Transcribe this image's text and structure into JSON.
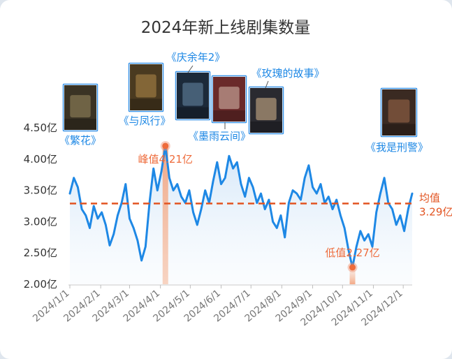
{
  "chart_data": {
    "type": "line",
    "title": "2024年新上线剧集数量",
    "xlabel": "",
    "ylabel": "",
    "ylim": [
      2.0,
      4.5
    ],
    "y_ticks": [
      "2.00亿",
      "2.50亿",
      "3.00亿",
      "3.50亿",
      "4.00亿",
      "4.50亿"
    ],
    "x_ticks": [
      "2024/1/1",
      "2024/2/1",
      "2024/3/1",
      "2024/4/1",
      "2024/5/1",
      "2024/6/1",
      "2024/7/1",
      "2024/8/1",
      "2024/9/1",
      "2024/10/1",
      "2024/11/1",
      "2024/12/1"
    ],
    "series": [
      {
        "name": "",
        "color": "#1e88e5",
        "x": [
          "2024-01-01",
          "2024-01-05",
          "2024-01-09",
          "2024-01-13",
          "2024-01-17",
          "2024-01-21",
          "2024-01-25",
          "2024-01-29",
          "2024-02-02",
          "2024-02-06",
          "2024-02-10",
          "2024-02-14",
          "2024-02-18",
          "2024-02-22",
          "2024-02-26",
          "2024-03-01",
          "2024-03-05",
          "2024-03-09",
          "2024-03-13",
          "2024-03-17",
          "2024-03-21",
          "2024-03-25",
          "2024-03-29",
          "2024-04-02",
          "2024-04-06",
          "2024-04-10",
          "2024-04-14",
          "2024-04-18",
          "2024-04-22",
          "2024-04-26",
          "2024-04-30",
          "2024-05-04",
          "2024-05-08",
          "2024-05-12",
          "2024-05-16",
          "2024-05-20",
          "2024-05-24",
          "2024-05-28",
          "2024-06-01",
          "2024-06-05",
          "2024-06-09",
          "2024-06-13",
          "2024-06-17",
          "2024-06-21",
          "2024-06-25",
          "2024-06-29",
          "2024-07-03",
          "2024-07-07",
          "2024-07-11",
          "2024-07-15",
          "2024-07-19",
          "2024-07-23",
          "2024-07-27",
          "2024-07-31",
          "2024-08-04",
          "2024-08-08",
          "2024-08-12",
          "2024-08-16",
          "2024-08-20",
          "2024-08-24",
          "2024-08-28",
          "2024-09-01",
          "2024-09-05",
          "2024-09-09",
          "2024-09-13",
          "2024-09-17",
          "2024-09-21",
          "2024-09-25",
          "2024-09-29",
          "2024-10-03",
          "2024-10-07",
          "2024-10-11",
          "2024-10-15",
          "2024-10-19",
          "2024-10-23",
          "2024-10-27",
          "2024-10-31",
          "2024-11-04",
          "2024-11-08",
          "2024-11-12",
          "2024-11-16",
          "2024-11-20",
          "2024-11-24",
          "2024-11-28",
          "2024-12-02",
          "2024-12-06",
          "2024-12-10"
        ],
        "values": [
          3.45,
          3.7,
          3.55,
          3.2,
          3.1,
          2.9,
          3.25,
          3.05,
          3.15,
          2.95,
          2.62,
          2.8,
          3.1,
          3.3,
          3.6,
          3.05,
          2.9,
          2.7,
          2.38,
          2.6,
          3.3,
          3.85,
          3.5,
          3.8,
          4.21,
          3.7,
          3.5,
          3.6,
          3.4,
          3.3,
          3.5,
          3.15,
          2.95,
          3.2,
          3.5,
          3.3,
          3.65,
          3.95,
          3.6,
          3.7,
          4.05,
          3.85,
          3.95,
          3.6,
          3.4,
          3.7,
          3.55,
          3.3,
          3.45,
          3.2,
          3.35,
          3.0,
          2.9,
          3.1,
          2.75,
          3.3,
          3.5,
          3.45,
          3.35,
          3.7,
          3.9,
          3.55,
          3.45,
          3.6,
          3.3,
          3.4,
          3.2,
          3.35,
          3.1,
          2.9,
          2.55,
          2.27,
          2.6,
          2.85,
          2.7,
          2.8,
          2.6,
          3.15,
          3.45,
          3.7,
          3.3,
          3.2,
          2.95,
          3.1,
          2.85,
          3.2,
          3.45
        ]
      }
    ],
    "peak": {
      "date": "2024-04-06",
      "value": 4.21,
      "label": "峰值4.21亿"
    },
    "trough": {
      "date": "2024-10-11",
      "value": 2.27,
      "label": "低值2.27亿"
    },
    "average": {
      "value": 3.29,
      "label_line1": "均值",
      "label_line2": "3.29亿",
      "color": "#e25422"
    },
    "annotations": [
      {
        "id": "fanhua",
        "label": "《繁花》",
        "poster_color": "#3a3324",
        "poster_accent": "#9a8a60"
      },
      {
        "id": "yufengxing",
        "label": "《与凤行》",
        "poster_color": "#4a3a20",
        "poster_accent": "#b38a4a"
      },
      {
        "id": "qingyunian",
        "label": "《庆余年2》",
        "poster_color": "#1c2a3a",
        "poster_accent": "#6a8aa8"
      },
      {
        "id": "moyuyunjian",
        "label": "《墨雨云间》",
        "poster_color": "#6a2a2a",
        "poster_accent": "#d8c0b0"
      },
      {
        "id": "meigui",
        "label": "《玫瑰的故事》",
        "poster_color": "#2a2a30",
        "poster_accent": "#d8b890"
      },
      {
        "id": "woshixingjing",
        "label": "《我是刑警》",
        "poster_color": "#3a2a22",
        "poster_accent": "#a06a4a"
      }
    ]
  }
}
